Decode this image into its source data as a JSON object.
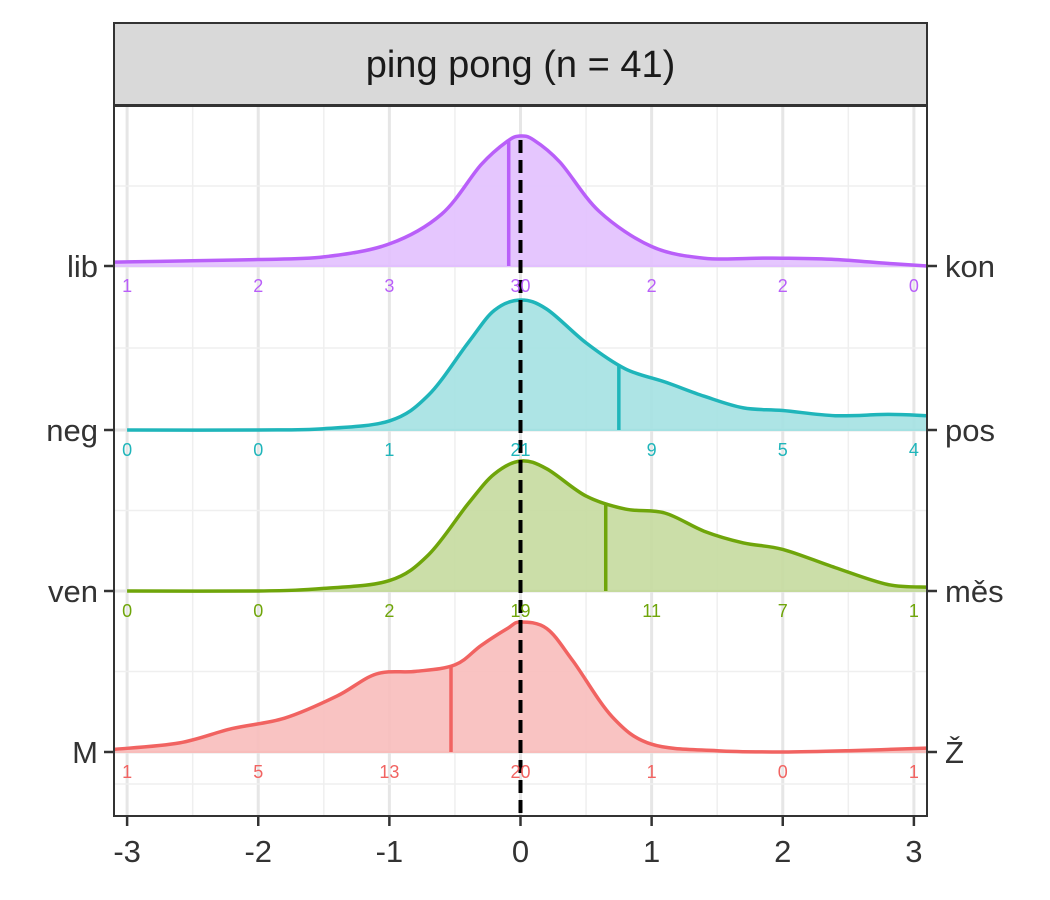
{
  "chart_data": {
    "type": "ridgeline-density",
    "title": "ping pong (n = 41)",
    "xlabel": "",
    "ylabel": "",
    "xlim": [
      -3.1,
      3.1
    ],
    "x_ticks": [
      -3,
      -2,
      -1,
      0,
      1,
      2,
      3
    ],
    "x_tick_labels": [
      "-3",
      "-2",
      "-1",
      "0",
      "1",
      "2",
      "3"
    ],
    "reference_line_x": 0,
    "grid": true,
    "count_positions": [
      -3,
      -2,
      -1,
      0,
      1,
      2,
      3
    ],
    "series": [
      {
        "left_label": "lib",
        "right_label": "kon",
        "color": "#B95FF9",
        "fill": "#E2C0FE",
        "mean": -0.09,
        "counts": [
          "1",
          "2",
          "3",
          "30",
          "2",
          "2",
          "0"
        ],
        "density": [
          [
            -3.1,
            0.03
          ],
          [
            -2.5,
            0.04
          ],
          [
            -2.0,
            0.05
          ],
          [
            -1.5,
            0.07
          ],
          [
            -1.0,
            0.17
          ],
          [
            -0.6,
            0.4
          ],
          [
            -0.3,
            0.78
          ],
          [
            -0.1,
            0.96
          ],
          [
            0.0,
            1.0
          ],
          [
            0.1,
            0.97
          ],
          [
            0.3,
            0.8
          ],
          [
            0.6,
            0.42
          ],
          [
            1.0,
            0.15
          ],
          [
            1.4,
            0.06
          ],
          [
            1.8,
            0.06
          ],
          [
            2.0,
            0.06
          ],
          [
            2.4,
            0.05
          ],
          [
            2.8,
            0.02
          ],
          [
            3.1,
            0.0
          ]
        ]
      },
      {
        "left_label": "neg",
        "right_label": "pos",
        "color": "#1FB5BA",
        "fill": "#A4E1E2",
        "mean": 0.75,
        "counts": [
          "0",
          "0",
          "1",
          "21",
          "9",
          "5",
          "4"
        ],
        "density": [
          [
            -3.0,
            0.0
          ],
          [
            -2.0,
            0.0
          ],
          [
            -1.5,
            0.01
          ],
          [
            -1.0,
            0.07
          ],
          [
            -0.7,
            0.27
          ],
          [
            -0.4,
            0.67
          ],
          [
            -0.2,
            0.92
          ],
          [
            0.0,
            1.0
          ],
          [
            0.2,
            0.93
          ],
          [
            0.5,
            0.67
          ],
          [
            0.8,
            0.47
          ],
          [
            1.1,
            0.37
          ],
          [
            1.4,
            0.26
          ],
          [
            1.7,
            0.17
          ],
          [
            2.0,
            0.15
          ],
          [
            2.4,
            0.11
          ],
          [
            2.8,
            0.12
          ],
          [
            3.1,
            0.11
          ]
        ]
      },
      {
        "left_label": "ven",
        "right_label": "měs",
        "color": "#6FA50A",
        "fill": "#C5DA9E",
        "mean": 0.65,
        "counts": [
          "0",
          "0",
          "2",
          "19",
          "11",
          "7",
          "1"
        ],
        "density": [
          [
            -3.0,
            0.0
          ],
          [
            -2.0,
            0.0
          ],
          [
            -1.5,
            0.02
          ],
          [
            -1.0,
            0.08
          ],
          [
            -0.7,
            0.28
          ],
          [
            -0.4,
            0.67
          ],
          [
            -0.2,
            0.9
          ],
          [
            0.0,
            1.0
          ],
          [
            0.2,
            0.94
          ],
          [
            0.5,
            0.73
          ],
          [
            0.8,
            0.63
          ],
          [
            1.1,
            0.6
          ],
          [
            1.4,
            0.46
          ],
          [
            1.7,
            0.37
          ],
          [
            2.0,
            0.32
          ],
          [
            2.4,
            0.18
          ],
          [
            2.8,
            0.05
          ],
          [
            3.1,
            0.03
          ]
        ]
      },
      {
        "left_label": "M",
        "right_label": "Ž",
        "color": "#F16361",
        "fill": "#F8BDBB",
        "mean": -0.53,
        "counts": [
          "1",
          "5",
          "13",
          "20",
          "1",
          "0",
          "1"
        ],
        "density": [
          [
            -3.1,
            0.02
          ],
          [
            -2.6,
            0.07
          ],
          [
            -2.2,
            0.18
          ],
          [
            -1.8,
            0.26
          ],
          [
            -1.4,
            0.43
          ],
          [
            -1.1,
            0.6
          ],
          [
            -0.8,
            0.62
          ],
          [
            -0.5,
            0.67
          ],
          [
            -0.3,
            0.82
          ],
          [
            -0.1,
            0.95
          ],
          [
            0.0,
            1.0
          ],
          [
            0.2,
            0.95
          ],
          [
            0.4,
            0.7
          ],
          [
            0.7,
            0.27
          ],
          [
            1.0,
            0.06
          ],
          [
            1.5,
            0.01
          ],
          [
            2.0,
            0.0
          ],
          [
            2.5,
            0.01
          ],
          [
            3.1,
            0.03
          ]
        ]
      }
    ]
  }
}
